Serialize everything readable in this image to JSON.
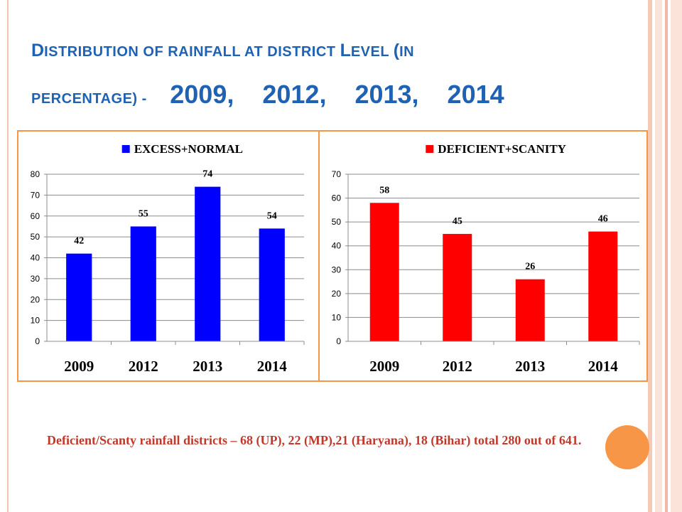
{
  "slide": {
    "title_parts": [
      "D",
      "ISTRIBUTION OF RAINFALL  AT DISTRICT ",
      "L",
      "EVEL ",
      "(",
      "IN"
    ],
    "title_line2_prefix": "PERCENTAGE) -",
    "title_years": "2009,    2012,    2013,    2014",
    "note": "Deficient/Scanty rainfall districts – 68 (UP), 22 (MP),21 (Haryana), 18 (Bihar) total 280 out of 641."
  },
  "colors": {
    "title": "#1f62b3",
    "frame": "#f79646",
    "series1": "#0000ff",
    "series2": "#ff0000",
    "note": "#c0392b",
    "decor_stripes": [
      "#f5c9b8",
      "#fbe3da",
      "#f1b9a4"
    ]
  },
  "chart_data": [
    {
      "type": "bar",
      "categories": [
        "2009",
        "2012",
        "2013",
        "2014"
      ],
      "series": [
        {
          "name": "EXCESS+NORMAL",
          "values": [
            42,
            55,
            74,
            54
          ]
        }
      ],
      "ylim": [
        0,
        80
      ],
      "yticks": [
        0,
        10,
        20,
        30,
        40,
        50,
        60,
        70,
        80
      ],
      "legend": "top",
      "grid": true,
      "data_labels": true
    },
    {
      "type": "bar",
      "categories": [
        "2009",
        "2012",
        "2013",
        "2014"
      ],
      "series": [
        {
          "name": "DEFICIENT+SCANITY",
          "values": [
            58,
            45,
            26,
            46
          ]
        }
      ],
      "ylim": [
        0,
        70
      ],
      "yticks": [
        0,
        10,
        20,
        30,
        40,
        50,
        60,
        70
      ],
      "legend": "top",
      "grid": true,
      "data_labels": true
    }
  ]
}
